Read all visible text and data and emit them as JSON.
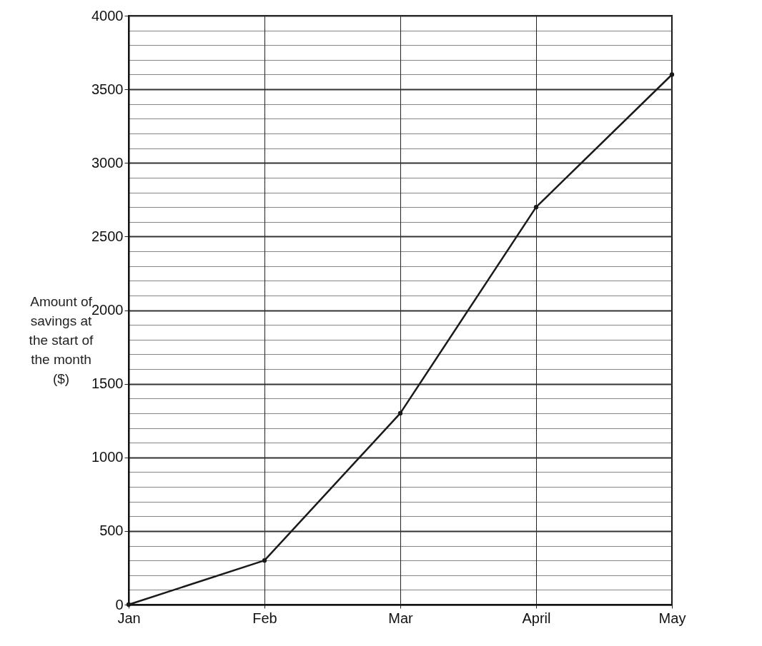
{
  "chart_data": {
    "type": "line",
    "ylabel": "Amount of\nsavings at\nthe start of\nthe month\n($)",
    "categories": [
      "Jan",
      "Feb",
      "Mar",
      "April",
      "May"
    ],
    "series": [
      {
        "color": "#1a1a1a",
        "values": [
          0,
          300,
          1300,
          2700,
          3600
        ]
      }
    ],
    "ylim": [
      0,
      4000
    ],
    "yticks": [
      0,
      {
        "value": 100,
        "label": null
      },
      {
        "value": 200,
        "label": null
      },
      {
        "value": 300,
        "label": null
      },
      {
        "value": 400,
        "label": null
      },
      500,
      {
        "value": 600,
        "label": null
      },
      {
        "value": 700,
        "label": null
      },
      {
        "value": 800,
        "label": null
      },
      {
        "value": 900,
        "label": null
      },
      1000,
      {
        "value": 1100,
        "label": null
      },
      {
        "value": 1200,
        "label": null
      },
      {
        "value": 1300,
        "label": null
      },
      {
        "value": 1400,
        "label": null
      },
      1500,
      {
        "value": 1600,
        "label": null
      },
      {
        "value": 1700,
        "label": null
      },
      {
        "value": 1800,
        "label": null
      },
      {
        "value": 1900,
        "label": null
      },
      2000,
      {
        "value": 2100,
        "label": null
      },
      {
        "value": 2200,
        "label": null
      },
      {
        "value": 2300,
        "label": null
      },
      {
        "value": 2400,
        "label": null
      },
      2500,
      {
        "value": 2600,
        "label": null
      },
      {
        "value": 2700,
        "label": null
      },
      {
        "value": 2800,
        "label": null
      },
      {
        "value": 2900,
        "label": null
      },
      3000,
      {
        "value": 3100,
        "label": null
      },
      {
        "value": 3200,
        "label": null
      },
      {
        "value": 3300,
        "label": null
      },
      {
        "value": 3400,
        "label": null
      },
      3500,
      {
        "value": 3600,
        "label": null
      },
      {
        "value": 3700,
        "label": null
      },
      {
        "value": 3800,
        "label": null
      },
      {
        "value": 3900,
        "label": null
      },
      4000
    ],
    "grid": true,
    "marker": "circle",
    "line_style": "solid"
  }
}
